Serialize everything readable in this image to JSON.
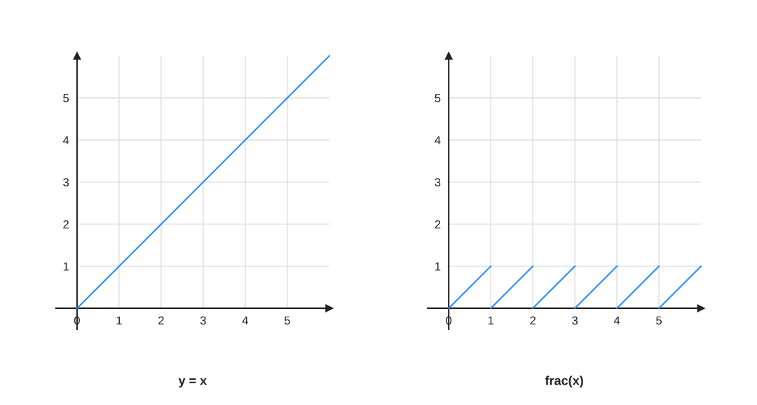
{
  "chart_data": [
    {
      "type": "line",
      "title": "y = x",
      "xlim": [
        -0.5,
        6
      ],
      "ylim": [
        -0.5,
        6
      ],
      "xticks": [
        0,
        1,
        2,
        3,
        4,
        5
      ],
      "yticks": [
        1,
        2,
        3,
        4,
        5
      ],
      "grid": true,
      "series": [
        {
          "color": "#2b8cff",
          "x": [
            0,
            6
          ],
          "values": [
            0,
            6
          ]
        }
      ]
    },
    {
      "type": "line",
      "title": "frac(x)",
      "xlim": [
        -0.5,
        6
      ],
      "ylim": [
        -0.5,
        6
      ],
      "xticks": [
        0,
        1,
        2,
        3,
        4,
        5
      ],
      "yticks": [
        1,
        2,
        3,
        4,
        5
      ],
      "grid": true,
      "series": [
        {
          "color": "#2b8cff",
          "x": [
            0,
            1
          ],
          "values": [
            0,
            1
          ]
        },
        {
          "color": "#2b8cff",
          "x": [
            1,
            2
          ],
          "values": [
            0,
            1
          ]
        },
        {
          "color": "#2b8cff",
          "x": [
            2,
            3
          ],
          "values": [
            0,
            1
          ]
        },
        {
          "color": "#2b8cff",
          "x": [
            3,
            4
          ],
          "values": [
            0,
            1
          ]
        },
        {
          "color": "#2b8cff",
          "x": [
            4,
            5
          ],
          "values": [
            0,
            1
          ]
        },
        {
          "color": "#2b8cff",
          "x": [
            5,
            6
          ],
          "values": [
            0,
            1
          ]
        }
      ]
    }
  ]
}
